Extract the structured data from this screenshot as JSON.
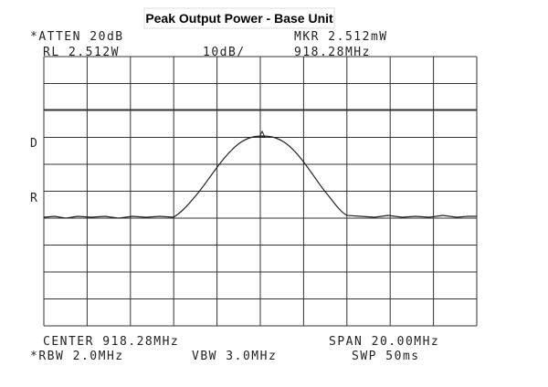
{
  "title": "Peak Output Power - Base Unit",
  "header": {
    "atten": "*ATTEN 20dB",
    "marker": "MKR 2.512mW",
    "ref_level": "RL 2.512W",
    "scale": "10dB/",
    "marker_freq": "918.28MHz"
  },
  "side_labels": [
    "D",
    "R"
  ],
  "footer": {
    "center": "CENTER 918.28MHz",
    "span": "SPAN 20.00MHz",
    "rbw": "*RBW 2.0MHz",
    "vbw": "VBW 3.0MHz",
    "sweep": "SWP 50ms"
  }
}
